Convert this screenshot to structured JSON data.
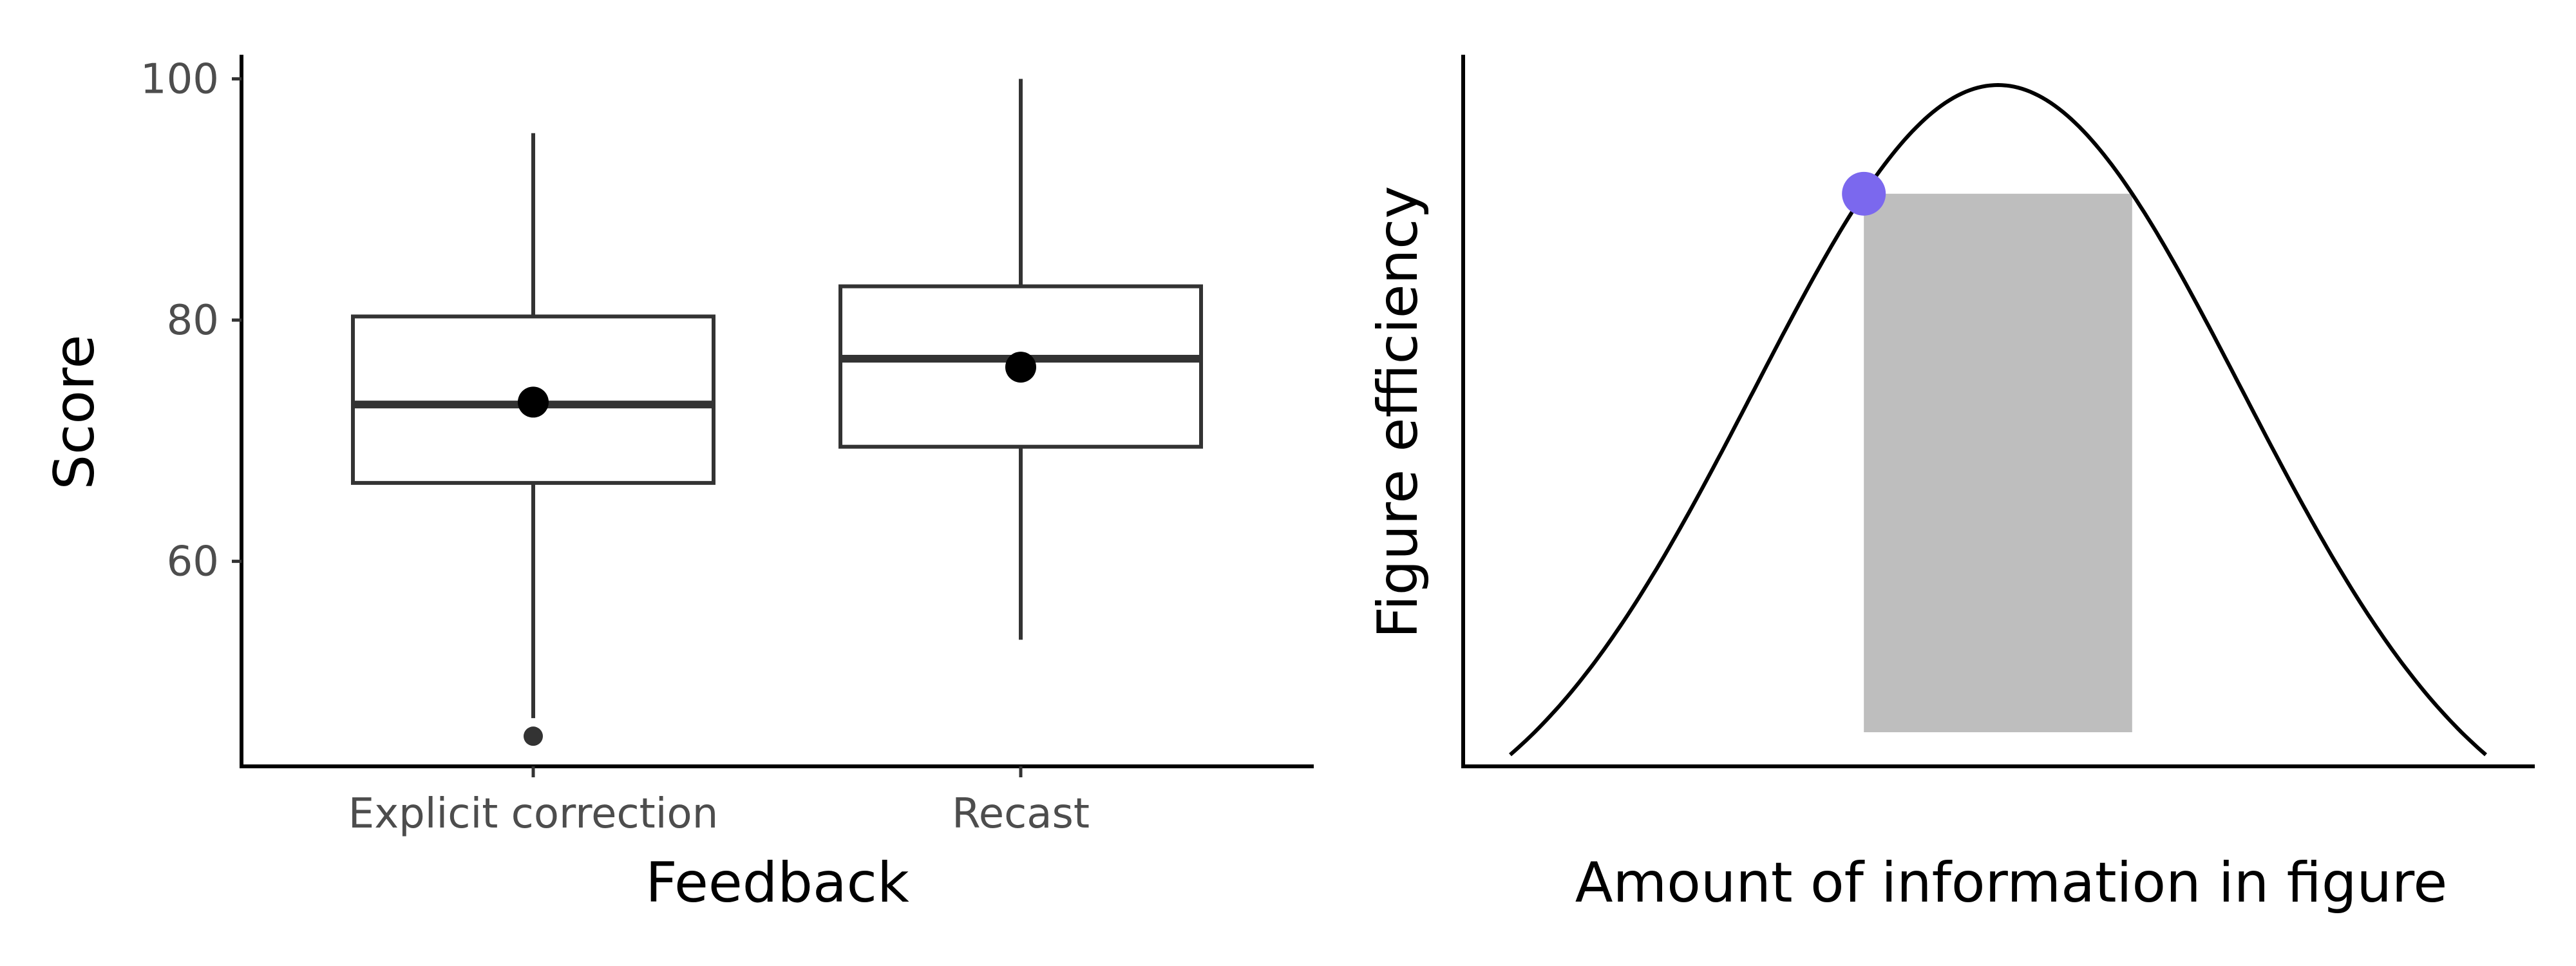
{
  "chart_data": [
    {
      "type": "box",
      "xlabel": "Feedback",
      "ylabel": "Score",
      "ylim": [
        43,
        102
      ],
      "yticks": [
        60,
        80,
        100
      ],
      "grid": false,
      "categories": [
        "Explicit correction",
        "Recast"
      ],
      "boxes": [
        {
          "category": "Explicit correction",
          "whisker_low": 47,
          "q1": 66.5,
          "median": 73,
          "q3": 80.3,
          "whisker_high": 95.5,
          "mean": 73.2,
          "outliers": [
            45.5
          ]
        },
        {
          "category": "Recast",
          "whisker_low": 53.5,
          "q1": 69.5,
          "median": 76.8,
          "q3": 82.8,
          "whisker_high": 100,
          "mean": 76.1,
          "outliers": []
        }
      ]
    },
    {
      "type": "area",
      "xlabel": "Amount of information in figure",
      "ylabel": "Figure efficiency",
      "ticks_shown": false,
      "grid": false,
      "curve": "bell curve (normal density), peak at center",
      "shaded_region": {
        "from": -0.55,
        "to": 0.55,
        "color": "#bebebe",
        "x_units": "standard deviations from peak"
      },
      "highlight_point": {
        "x": -0.55,
        "color": "#7b68ee"
      },
      "x_range": [
        -2,
        2
      ]
    }
  ]
}
